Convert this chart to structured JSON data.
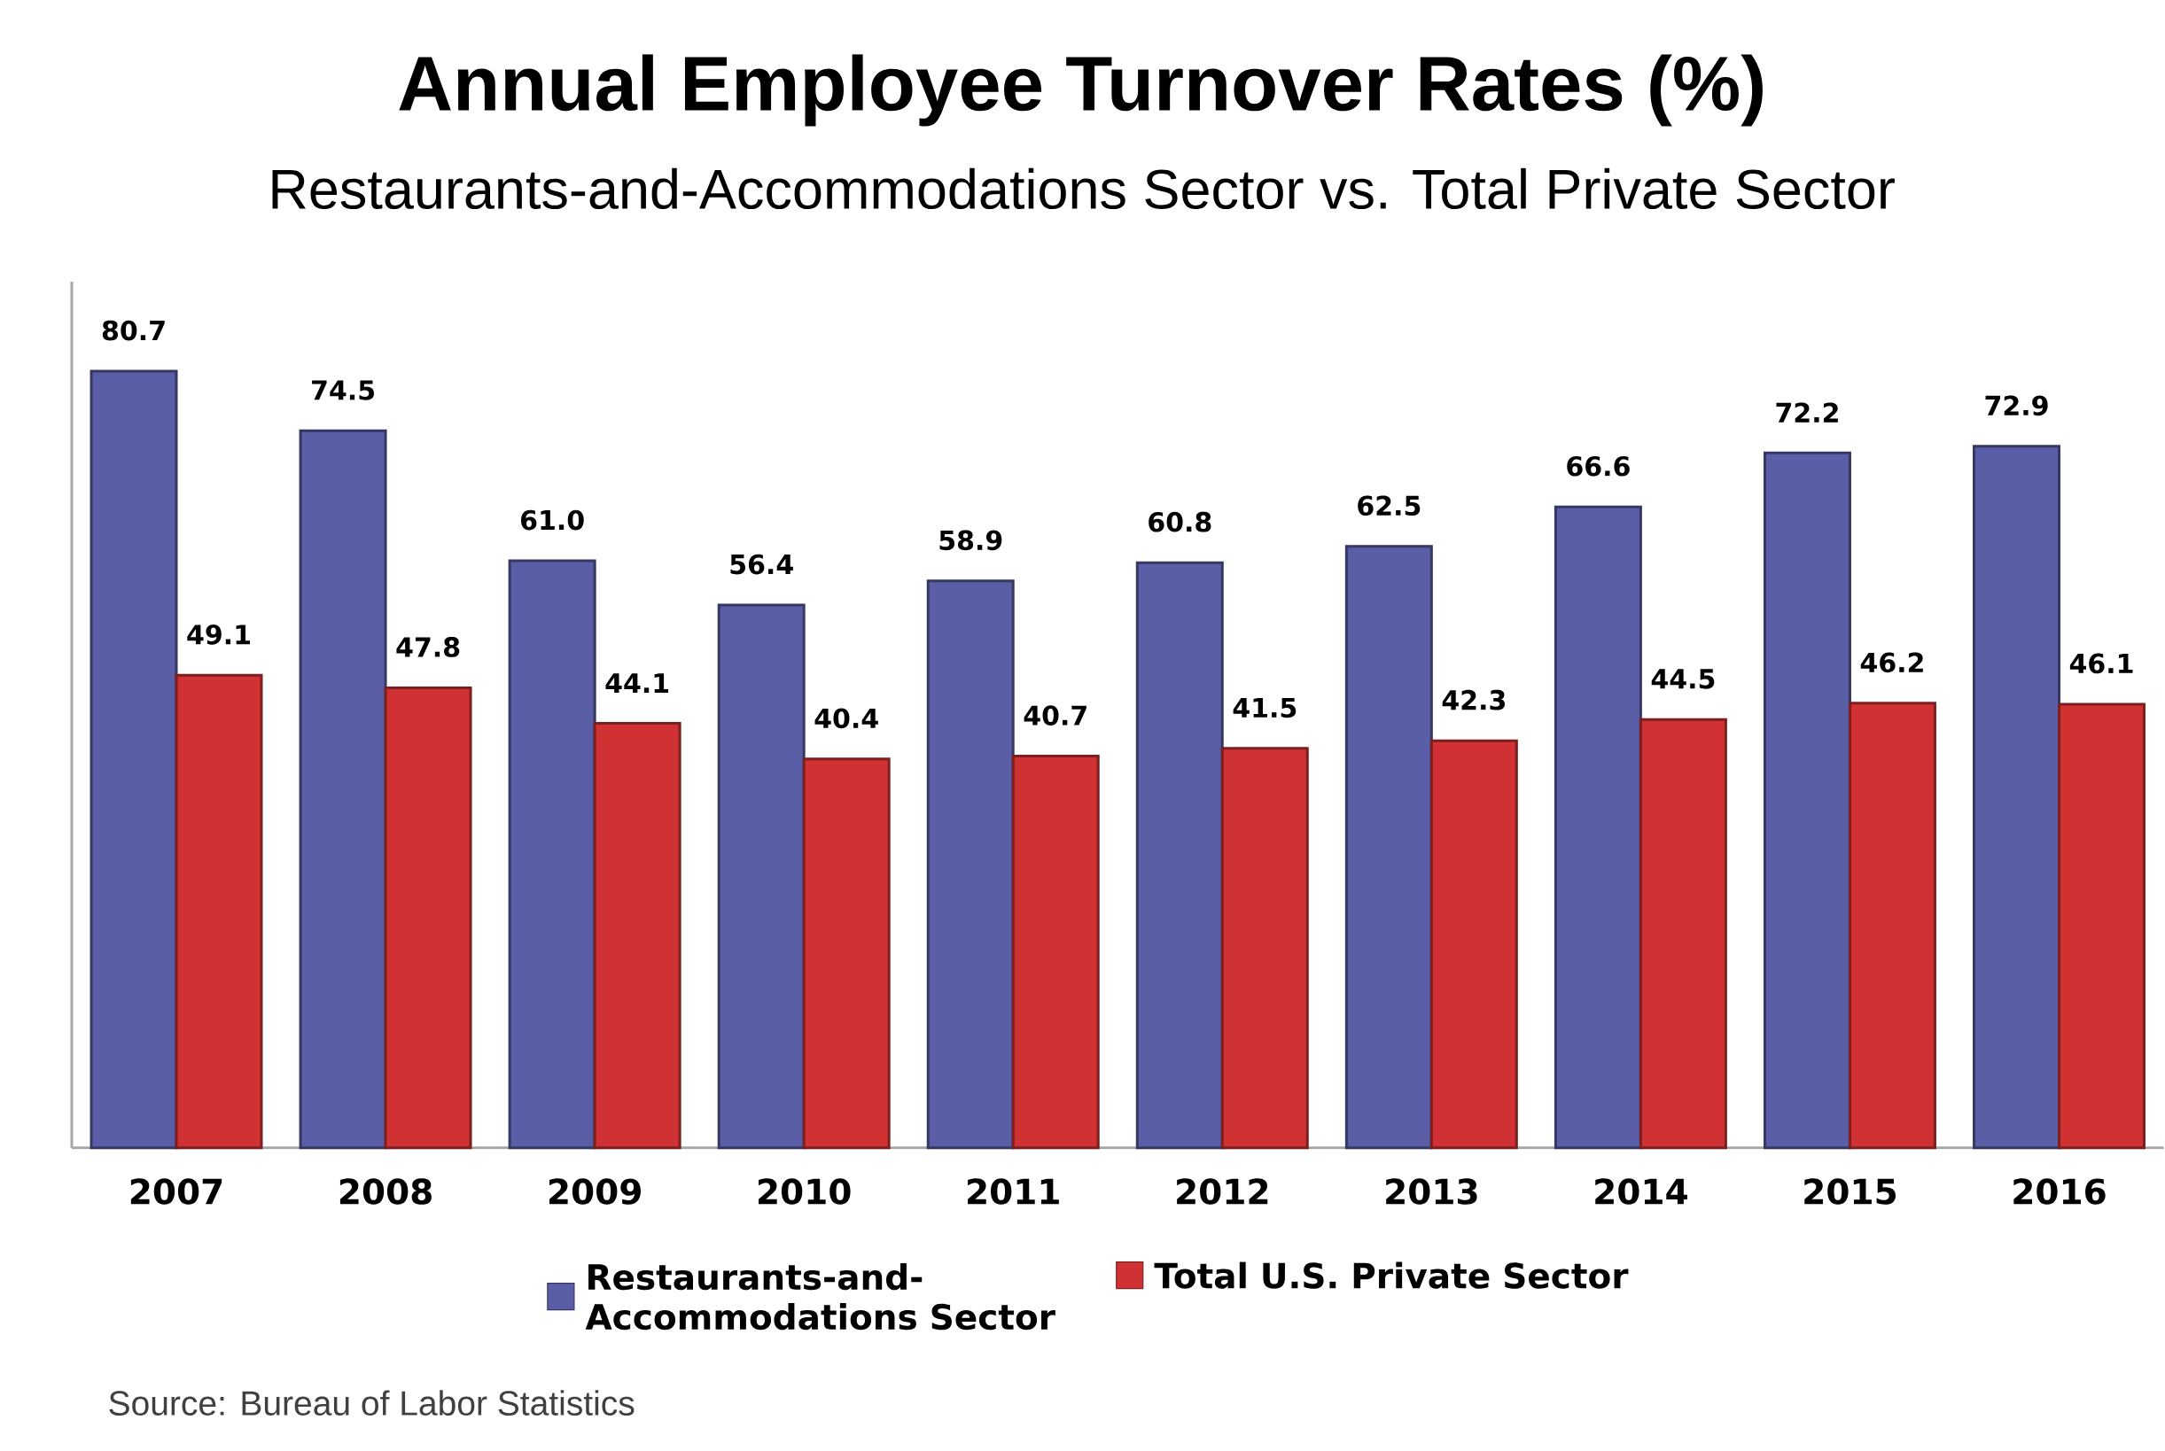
{
  "chart_data": {
    "type": "bar",
    "title": "Annual Employee Turnover Rates (%)",
    "subtitle": "Restaurants-and-Accommodations Sector vs. Total Private Sector",
    "categories": [
      "2007",
      "2008",
      "2009",
      "2010",
      "2011",
      "2012",
      "2013",
      "2014",
      "2015",
      "2016"
    ],
    "series": [
      {
        "name": "Restaurants-and-Accommodations Sector",
        "color": "#5a5ea6",
        "values": [
          80.7,
          74.5,
          61.0,
          56.4,
          58.9,
          60.8,
          62.5,
          66.6,
          72.2,
          72.9
        ],
        "value_labels": [
          "80.7",
          "74.5",
          "61.0",
          "56.4",
          "58.9",
          "60.8",
          "62.5",
          "66.6",
          "72.2",
          "72.9"
        ]
      },
      {
        "name": "Total U.S. Private Sector",
        "color": "#d03234",
        "values": [
          49.1,
          47.8,
          44.1,
          40.4,
          40.7,
          41.5,
          42.3,
          44.5,
          46.2,
          46.1
        ],
        "value_labels": [
          "49.1",
          "47.8",
          "44.1",
          "40.4",
          "40.7",
          "41.5",
          "42.3",
          "44.5",
          "46.2",
          "46.1"
        ]
      }
    ],
    "ylim": [
      0,
      90
    ],
    "tick_labels": "x",
    "legend": "bottom",
    "annotations": [
      "Source: Bureau of Labor Statistics"
    ]
  }
}
